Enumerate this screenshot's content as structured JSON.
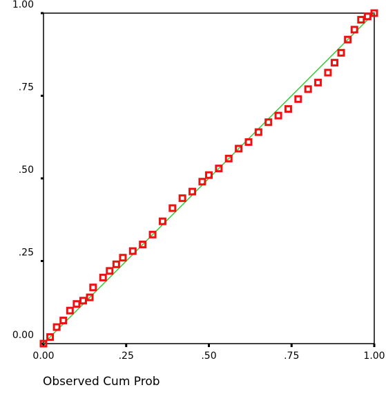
{
  "chart_data": {
    "type": "scatter",
    "x_label": "Observed Cum Prob",
    "x": [
      0,
      0.02,
      0.04,
      0.06,
      0.08,
      0.1,
      0.12,
      0.14,
      0.15,
      0.18,
      0.2,
      0.22,
      0.24,
      0.27,
      0.3,
      0.33,
      0.36,
      0.39,
      0.42,
      0.45,
      0.48,
      0.5,
      0.53,
      0.56,
      0.59,
      0.62,
      0.65,
      0.68,
      0.71,
      0.74,
      0.77,
      0.8,
      0.83,
      0.86,
      0.88,
      0.9,
      0.92,
      0.94,
      0.96,
      0.98,
      1
    ],
    "values": [
      0,
      0.02,
      0.05,
      0.07,
      0.1,
      0.12,
      0.13,
      0.14,
      0.17,
      0.2,
      0.22,
      0.24,
      0.26,
      0.28,
      0.3,
      0.33,
      0.37,
      0.41,
      0.44,
      0.46,
      0.49,
      0.51,
      0.53,
      0.56,
      0.59,
      0.61,
      0.64,
      0.67,
      0.69,
      0.71,
      0.74,
      0.77,
      0.79,
      0.82,
      0.85,
      0.88,
      0.92,
      0.95,
      0.98,
      0.99,
      1
    ],
    "color": "#ee1111",
    "reference_line_color": "#33cc33",
    "xlim": [
      0,
      1
    ],
    "ylim": [
      0,
      1
    ],
    "xticks": [
      {
        "value": 0,
        "label": "0.00"
      },
      {
        "value": 0.25,
        "label": ".25"
      },
      {
        "value": 0.5,
        "label": ".50"
      },
      {
        "value": 0.75,
        "label": ".75"
      },
      {
        "value": 1,
        "label": "1.00"
      }
    ],
    "yticks": [
      {
        "value": 0,
        "label": "0.00"
      },
      {
        "value": 0.25,
        "label": ".25"
      },
      {
        "value": 0.5,
        "label": ".50"
      },
      {
        "value": 0.75,
        "label": ".75"
      },
      {
        "value": 1,
        "label": "1.00"
      }
    ]
  }
}
